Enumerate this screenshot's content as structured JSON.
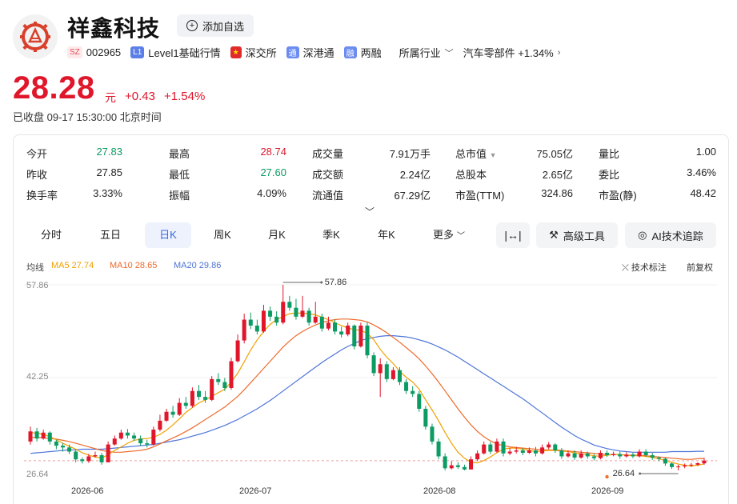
{
  "header": {
    "stock_name": "祥鑫科技",
    "watch_label": "添加自选",
    "tags": {
      "market_badge": "SZ",
      "code": "002965",
      "level_badge": "L1",
      "level_label": "Level1基础行情",
      "exchange_label": "深交所",
      "connect_badge": "通",
      "connect_label": "深港通",
      "margin_badge": "融",
      "margin_label": "两融",
      "industry_label": "所属行业",
      "sector_label": "汽车零部件 +1.34%"
    }
  },
  "quote": {
    "price": "28.28",
    "unit": "元",
    "change": "+0.43",
    "change_pct": "+1.54%",
    "close_time": "已收盘 09-17 15:30:00 北京时间"
  },
  "stats": {
    "open_label": "今开",
    "open": "27.83",
    "high_label": "最高",
    "high": "28.74",
    "volume_label": "成交量",
    "volume": "7.91万手",
    "mktcap_label": "总市值",
    "mktcap": "75.05亿",
    "vol_ratio_label": "量比",
    "vol_ratio": "1.00",
    "prev_close_label": "昨收",
    "prev_close": "27.85",
    "low_label": "最低",
    "low": "27.60",
    "amount_label": "成交额",
    "amount": "2.24亿",
    "shares_label": "总股本",
    "shares": "2.65亿",
    "bid_ratio_label": "委比",
    "bid_ratio": "3.46%",
    "turnover_label": "换手率",
    "turnover": "3.33%",
    "amplitude_label": "振幅",
    "amplitude": "4.09%",
    "float_cap_label": "流通值",
    "float_cap": "67.29亿",
    "pe_ttm_label": "市盈(TTM)",
    "pe_ttm": "324.86",
    "pe_static_label": "市盈(静)",
    "pe_static": "48.42"
  },
  "tabs": [
    "分时",
    "五日",
    "日K",
    "周K",
    "月K",
    "季K",
    "年K",
    "更多"
  ],
  "active_tab": "日K",
  "tools": {
    "adv_tools": "高级工具",
    "ai_trace": "AI技术追踪",
    "tech_mark": "技术标注",
    "adjust": "前复权"
  },
  "ma": {
    "label": "均线",
    "ma5": "MA5 27.74",
    "ma10": "MA10 28.65",
    "ma20": "MA20 29.86"
  },
  "colors": {
    "up": "#e0162b",
    "down": "#0c9b63",
    "ma5": "#f0a000",
    "ma10": "#ee6a2c",
    "ma20": "#4d74d8"
  },
  "chart_data": {
    "type": "candlestick",
    "y_axis_ticks": [
      "57.86",
      "42.25",
      "26.64"
    ],
    "ylim": [
      26.64,
      57.86
    ],
    "x_axis_ticks": [
      "2026-06",
      "2026-07",
      "2026-08",
      "2026-09"
    ],
    "high_annotation": "57.86",
    "low_annotation": "26.64",
    "candles": [
      [
        31.5,
        33.2,
        34.0,
        31.0
      ],
      [
        33.2,
        32.0,
        33.8,
        31.5
      ],
      [
        32.0,
        33.0,
        33.5,
        31.8
      ],
      [
        33.0,
        31.5,
        33.2,
        31.0
      ],
      [
        31.5,
        30.8,
        31.8,
        30.2
      ],
      [
        30.8,
        30.5,
        31.2,
        29.8
      ],
      [
        30.5,
        29.8,
        31.0,
        29.4
      ],
      [
        29.8,
        28.5,
        30.2,
        28.0
      ],
      [
        28.5,
        28.2,
        28.8,
        27.8
      ],
      [
        28.2,
        29.0,
        29.4,
        27.9
      ],
      [
        29.0,
        29.2,
        29.8,
        28.8
      ],
      [
        29.2,
        28.0,
        29.6,
        27.6
      ],
      [
        28.0,
        31.0,
        31.5,
        28.0
      ],
      [
        31.0,
        32.0,
        32.5,
        30.8
      ],
      [
        32.0,
        33.0,
        33.5,
        31.8
      ],
      [
        33.0,
        32.5,
        33.6,
        32.0
      ],
      [
        32.5,
        32.0,
        33.0,
        31.6
      ],
      [
        32.0,
        31.2,
        32.5,
        30.8
      ],
      [
        31.2,
        31.0,
        31.8,
        30.5
      ],
      [
        31.0,
        33.5,
        34.0,
        30.8
      ],
      [
        33.5,
        35.0,
        36.0,
        33.2
      ],
      [
        35.0,
        36.5,
        37.0,
        34.8
      ],
      [
        36.5,
        36.0,
        37.5,
        35.5
      ],
      [
        36.0,
        38.0,
        38.8,
        35.8
      ],
      [
        38.0,
        37.5,
        39.0,
        37.0
      ],
      [
        37.5,
        40.0,
        40.6,
        37.2
      ],
      [
        40.0,
        39.0,
        41.0,
        38.5
      ],
      [
        39.0,
        38.5,
        40.0,
        38.0
      ],
      [
        38.5,
        42.0,
        42.5,
        38.3
      ],
      [
        42.0,
        41.5,
        43.0,
        41.0
      ],
      [
        41.5,
        40.5,
        42.2,
        40.0
      ],
      [
        40.5,
        45.0,
        45.6,
        40.2
      ],
      [
        45.0,
        48.5,
        49.5,
        44.8
      ],
      [
        48.5,
        52.0,
        53.0,
        48.0
      ],
      [
        52.0,
        51.0,
        53.2,
        50.4
      ],
      [
        51.0,
        50.0,
        52.0,
        49.5
      ],
      [
        50.0,
        53.5,
        54.5,
        49.8
      ],
      [
        53.5,
        52.5,
        54.2,
        51.8
      ],
      [
        52.5,
        51.5,
        53.4,
        51.0
      ],
      [
        51.5,
        55.0,
        57.86,
        51.2
      ],
      [
        55.0,
        54.0,
        56.0,
        53.5
      ],
      [
        54.0,
        52.5,
        55.5,
        52.0
      ],
      [
        52.5,
        53.5,
        56.0,
        52.3
      ],
      [
        53.5,
        51.5,
        54.0,
        51.0
      ],
      [
        51.5,
        52.5,
        55.0,
        51.3
      ],
      [
        52.5,
        50.5,
        53.0,
        50.0
      ],
      [
        50.5,
        51.5,
        52.5,
        50.2
      ],
      [
        51.5,
        50.0,
        52.0,
        49.5
      ],
      [
        50.0,
        49.5,
        50.8,
        49.0
      ],
      [
        49.5,
        51.0,
        51.5,
        49.2
      ],
      [
        51.0,
        47.5,
        51.2,
        47.0
      ],
      [
        47.5,
        51.0,
        51.5,
        47.3
      ],
      [
        51.0,
        46.0,
        51.5,
        45.5
      ],
      [
        46.0,
        43.0,
        46.5,
        42.5
      ],
      [
        43.0,
        44.5,
        45.5,
        39.0
      ],
      [
        44.5,
        42.0,
        45.0,
        41.5
      ],
      [
        42.0,
        43.5,
        44.0,
        41.8
      ],
      [
        43.5,
        41.5,
        44.0,
        41.0
      ],
      [
        41.5,
        40.0,
        42.0,
        39.5
      ],
      [
        40.0,
        39.5,
        40.8,
        39.0
      ],
      [
        39.5,
        37.0,
        40.0,
        36.5
      ],
      [
        37.0,
        34.0,
        37.5,
        33.5
      ],
      [
        34.0,
        31.5,
        34.5,
        31.0
      ],
      [
        31.5,
        29.0,
        32.0,
        28.5
      ],
      [
        29.0,
        27.0,
        29.5,
        26.64
      ],
      [
        27.0,
        27.5,
        28.2,
        26.8
      ],
      [
        27.5,
        27.2,
        28.0,
        26.9
      ],
      [
        27.2,
        26.8,
        27.6,
        26.64
      ],
      [
        26.8,
        28.5,
        29.0,
        26.8
      ],
      [
        28.5,
        29.5,
        30.0,
        28.2
      ],
      [
        29.5,
        31.0,
        31.5,
        29.3
      ],
      [
        31.0,
        29.8,
        31.4,
        29.4
      ],
      [
        29.8,
        31.5,
        32.0,
        29.6
      ],
      [
        31.5,
        29.5,
        32.0,
        29.0
      ],
      [
        29.5,
        29.8,
        30.4,
        29.2
      ],
      [
        29.8,
        30.0,
        30.6,
        29.5
      ],
      [
        30.0,
        29.6,
        30.4,
        29.2
      ],
      [
        29.6,
        30.0,
        30.5,
        29.4
      ],
      [
        30.0,
        29.5,
        30.6,
        29.0
      ],
      [
        29.5,
        30.5,
        31.0,
        29.3
      ],
      [
        30.5,
        31.0,
        31.4,
        30.2
      ],
      [
        31.0,
        30.0,
        31.2,
        29.6
      ],
      [
        30.0,
        29.0,
        30.4,
        28.6
      ],
      [
        29.0,
        29.5,
        30.0,
        28.8
      ],
      [
        29.5,
        28.8,
        30.0,
        28.4
      ],
      [
        28.8,
        29.5,
        30.0,
        28.6
      ],
      [
        29.5,
        29.0,
        29.8,
        28.6
      ],
      [
        29.0,
        28.7,
        29.4,
        28.3
      ],
      [
        28.7,
        29.6,
        30.0,
        28.5
      ],
      [
        29.6,
        29.2,
        30.0,
        28.9
      ],
      [
        29.2,
        29.4,
        29.8,
        29.0
      ],
      [
        29.4,
        29.0,
        29.8,
        28.6
      ],
      [
        29.0,
        29.3,
        29.7,
        28.8
      ],
      [
        29.3,
        29.0,
        29.6,
        28.7
      ],
      [
        29.0,
        29.8,
        30.2,
        28.8
      ],
      [
        29.8,
        29.2,
        30.2,
        28.9
      ],
      [
        29.2,
        28.8,
        29.6,
        28.4
      ],
      [
        28.8,
        28.6,
        29.0,
        28.2
      ],
      [
        28.6,
        27.8,
        28.8,
        27.4
      ],
      [
        27.8,
        27.2,
        28.0,
        26.9
      ],
      [
        27.2,
        27.3,
        27.6,
        26.64
      ],
      [
        27.3,
        27.5,
        27.8,
        27.0
      ],
      [
        27.5,
        27.6,
        27.9,
        27.2
      ],
      [
        27.6,
        27.85,
        28.0,
        27.4
      ],
      [
        27.83,
        28.28,
        28.74,
        27.6
      ]
    ],
    "ma5": [
      33.0,
      32.9,
      32.7,
      32.3,
      31.8,
      31.2,
      30.7,
      30.2,
      29.6,
      29.2,
      28.9,
      28.7,
      29.3,
      30.0,
      30.6,
      31.2,
      31.7,
      31.9,
      32.0,
      32.2,
      32.7,
      33.4,
      34.3,
      35.3,
      36.4,
      37.2,
      38.0,
      38.5,
      39.1,
      39.7,
      40.3,
      41.5,
      43.0,
      44.9,
      46.9,
      48.6,
      50.0,
      51.2,
      52.0,
      52.5,
      53.0,
      53.1,
      53.1,
      53.0,
      52.8,
      52.4,
      52.0,
      51.5,
      51.0,
      50.6,
      50.3,
      50.2,
      49.7,
      48.6,
      47.0,
      45.7,
      44.6,
      43.3,
      42.3,
      41.5,
      40.3,
      38.5,
      36.8,
      35.0,
      33.0,
      31.2,
      29.7,
      28.7,
      28.0,
      27.9,
      28.3,
      28.9,
      29.6,
      30.2,
      30.4,
      30.4,
      30.2,
      30.0,
      29.8,
      29.9,
      30.0,
      30.0,
      29.9,
      29.8,
      29.6,
      29.4,
      29.3,
      29.1,
      29.0,
      29.2,
      29.3,
      29.3,
      29.2,
      29.1,
      29.1,
      29.0,
      28.8,
      28.6,
      28.3,
      28.0,
      27.7,
      27.5,
      27.4,
      27.5,
      27.74
    ],
    "ma10": [
      32.2,
      32.2,
      32.1,
      32.0,
      31.9,
      31.7,
      31.5,
      31.2,
      30.9,
      30.6,
      30.3,
      30.0,
      29.8,
      29.7,
      29.7,
      29.8,
      29.9,
      30.0,
      30.2,
      30.6,
      31.1,
      31.6,
      32.1,
      32.6,
      33.2,
      33.8,
      34.5,
      35.2,
      35.9,
      36.6,
      37.3,
      38.2,
      39.1,
      40.2,
      41.4,
      42.6,
      43.8,
      45.0,
      46.2,
      47.4,
      48.4,
      49.3,
      50.0,
      50.6,
      51.1,
      51.5,
      51.8,
      52.0,
      52.1,
      52.1,
      52.0,
      51.9,
      51.6,
      51.1,
      50.5,
      49.8,
      49.0,
      48.2,
      47.3,
      46.4,
      45.4,
      44.2,
      42.9,
      41.5,
      40.0,
      38.5,
      37.0,
      35.6,
      34.3,
      33.2,
      32.3,
      31.6,
      31.1,
      30.8,
      30.6,
      30.5,
      30.4,
      30.3,
      30.2,
      30.1,
      30.1,
      30.1,
      30.0,
      29.9,
      29.8,
      29.7,
      29.6,
      29.5,
      29.4,
      29.3,
      29.3,
      29.3,
      29.2,
      29.2,
      29.2,
      29.1,
      29.0,
      28.9,
      28.8,
      28.7,
      28.6,
      28.5,
      28.5,
      28.6,
      28.65
    ],
    "ma20": [
      29.5,
      29.6,
      29.7,
      29.8,
      29.9,
      30.0,
      30.1,
      30.1,
      30.2,
      30.2,
      30.2,
      30.2,
      30.3,
      30.4,
      30.5,
      30.6,
      30.7,
      30.8,
      30.9,
      31.0,
      31.2,
      31.4,
      31.6,
      31.8,
      32.1,
      32.4,
      32.7,
      33.0,
      33.4,
      33.8,
      34.2,
      34.7,
      35.2,
      35.8,
      36.4,
      37.0,
      37.7,
      38.4,
      39.2,
      40.0,
      40.8,
      41.6,
      42.4,
      43.2,
      44.0,
      44.8,
      45.5,
      46.2,
      46.9,
      47.5,
      48.0,
      48.5,
      48.8,
      49.0,
      49.2,
      49.3,
      49.3,
      49.2,
      49.1,
      48.9,
      48.6,
      48.3,
      47.9,
      47.4,
      46.9,
      46.3,
      45.7,
      45.0,
      44.3,
      43.6,
      42.9,
      42.2,
      41.5,
      40.8,
      40.1,
      39.4,
      38.7,
      37.9,
      37.1,
      36.3,
      35.5,
      34.7,
      33.9,
      33.2,
      32.5,
      31.9,
      31.4,
      30.9,
      30.6,
      30.3,
      30.1,
      29.9,
      29.8,
      29.7,
      29.7,
      29.7,
      29.7,
      29.7,
      29.7,
      29.8,
      29.8,
      29.8,
      29.8,
      29.85,
      29.86
    ]
  }
}
